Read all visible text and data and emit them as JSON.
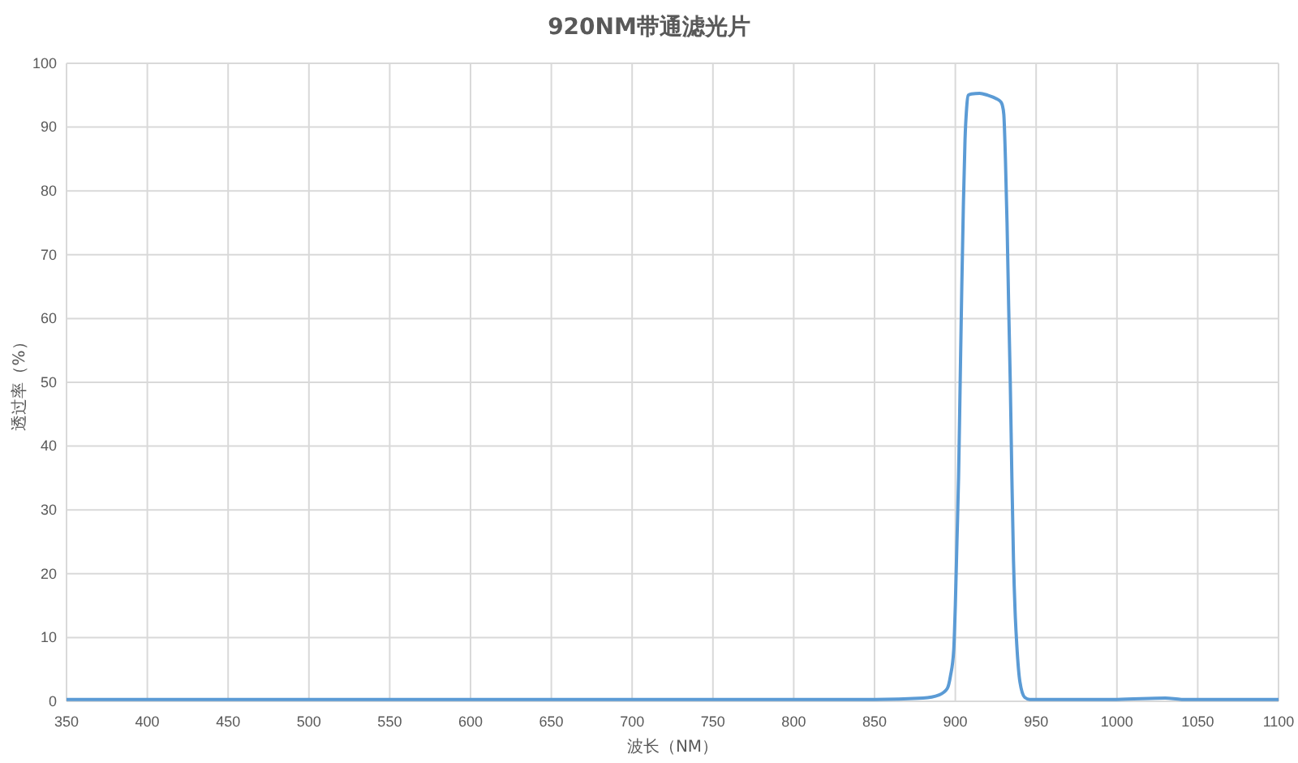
{
  "chart_data": {
    "type": "line",
    "title": "920NM带通滤光片",
    "xlabel": "波长（NM）",
    "ylabel": "透过率（%）",
    "series": [
      {
        "color": "#5b9bd5",
        "x": [
          350,
          450,
          550,
          650,
          750,
          850,
          880,
          890,
          895,
          897,
          899,
          900,
          901,
          902,
          903,
          904,
          905,
          906,
          907,
          908,
          910,
          915,
          920,
          925,
          928,
          929,
          930,
          931,
          932,
          933,
          934,
          935,
          936,
          937,
          938,
          940,
          943,
          946,
          950,
          1000,
          1030,
          1040,
          1100
        ],
        "values": [
          0.3,
          0.3,
          0.3,
          0.3,
          0.3,
          0.3,
          0.5,
          1,
          2,
          4,
          8,
          15,
          25,
          35,
          50,
          65,
          78,
          88,
          93,
          95,
          95.2,
          95.3,
          95,
          94.5,
          94,
          93.5,
          92,
          85,
          75,
          62,
          50,
          35,
          22,
          14,
          9,
          3,
          0.6,
          0.3,
          0.3,
          0.3,
          0.5,
          0.3,
          0.3
        ]
      }
    ],
    "xlim": [
      350,
      1100
    ],
    "xticks": [
      350,
      400,
      450,
      500,
      550,
      600,
      650,
      700,
      750,
      800,
      850,
      900,
      950,
      1000,
      1050,
      1100
    ],
    "ylim": [
      0,
      100
    ],
    "yticks": [
      0,
      10,
      20,
      30,
      40,
      50,
      60,
      70,
      80,
      90,
      100
    ],
    "grid": true,
    "marker": "none",
    "line_style": "solid"
  }
}
